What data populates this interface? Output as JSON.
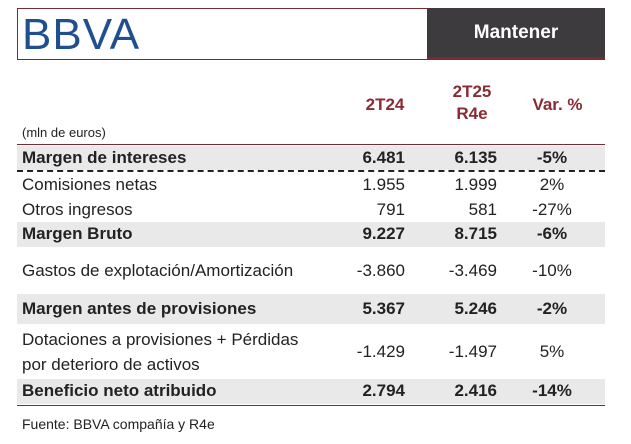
{
  "header": {
    "logo_text": "BBVA",
    "badge": "Mantener"
  },
  "columns": {
    "c1": "2T24",
    "c2_line1": "2T25",
    "c2_line2": "R4e",
    "c3": "Var. %"
  },
  "units": "(mln de euros)",
  "rows": [
    {
      "label": "Margen de intereses",
      "v1": "6.481",
      "v2": "6.135",
      "var": "-5%"
    },
    {
      "label": "Comisiones netas",
      "v1": "1.955",
      "v2": "1.999",
      "var": "2%"
    },
    {
      "label": "Otros ingresos",
      "v1": "791",
      "v2": "581",
      "var": "-27%"
    },
    {
      "label": "Margen Bruto",
      "v1": "9.227",
      "v2": "8.715",
      "var": "-6%"
    },
    {
      "label": "Gastos de explotación/Amortización",
      "v1": "-3.860",
      "v2": "-3.469",
      "var": "-10%"
    },
    {
      "label": "Margen antes de provisiones",
      "v1": "5.367",
      "v2": "5.246",
      "var": "-2%"
    },
    {
      "label_line1": "Dotaciones a provisiones + Pérdidas",
      "label_line2": "por deterioro de activos",
      "v1": "-1.429",
      "v2": "-1.497",
      "var": "5%"
    },
    {
      "label": "Beneficio neto atribuido",
      "v1": "2.794",
      "v2": "2.416",
      "var": "-14%"
    }
  ],
  "source": "Fuente: BBVA compañía y R4e",
  "colors": {
    "accent": "#8a2b34",
    "logo": "#1f4f8f",
    "badge_bg": "#3d3b3d",
    "shade": "#e9e9e9"
  }
}
